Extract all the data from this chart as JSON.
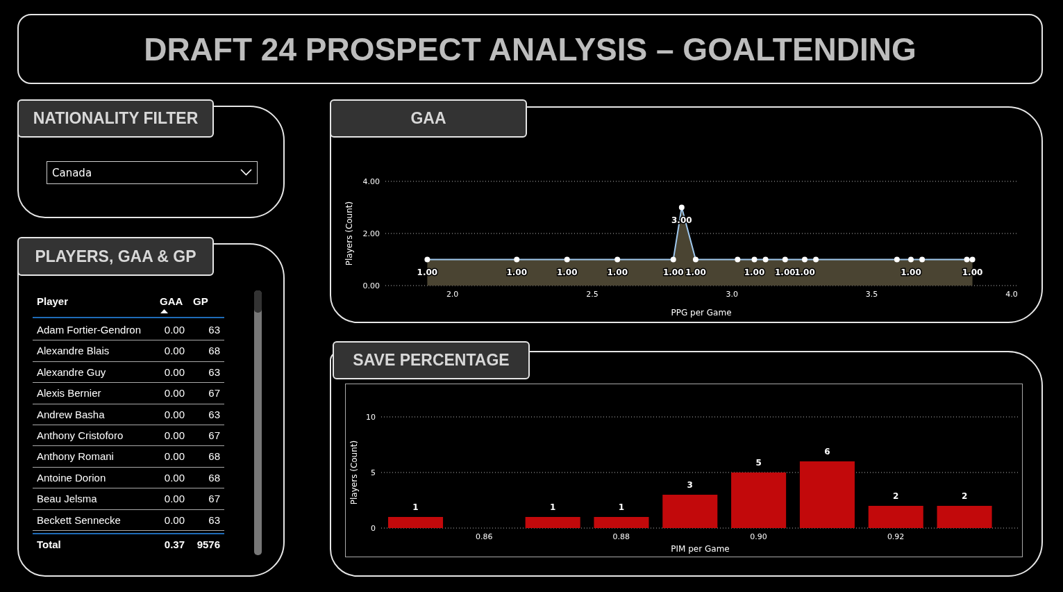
{
  "chart_data": [
    {
      "type": "other",
      "title": "DRAFT 24 PROSPECT ANALYSIS –  GOALTENDING"
    },
    {
      "type": "other",
      "title": "NATIONALITY FILTER",
      "annotations": [
        "Canada"
      ]
    },
    {
      "type": "other",
      "title": "PLAYERS, GAA & GP",
      "xlabel": "Player",
      "categories": [
        "Adam Fortier-Gendron",
        "Alexandre Blais",
        "Alexandre Guy",
        "Alexis Bernier",
        "Andrew Basha",
        "Anthony Cristoforo",
        "Anthony Romani",
        "Antoine Dorion",
        "Beau Jelsma",
        "Beckett Sennecke"
      ],
      "series": [
        {
          "name": "GAA",
          "values": [
            0,
            0,
            0,
            0,
            0,
            0,
            0,
            0,
            0,
            0
          ],
          "value_labels": [
            "0.00",
            "0.00",
            "0.00",
            "0.00",
            "0.00",
            "0.00",
            "0.00",
            "0.00",
            "0.00",
            "0.00"
          ]
        },
        {
          "name": "GP",
          "values": [
            63,
            68,
            63,
            67,
            63,
            67,
            68,
            68,
            67,
            63
          ]
        }
      ],
      "data_labels": true,
      "annotations": [
        "Total"
      ],
      "totals": [
        "0.37",
        "9576"
      ]
    },
    {
      "type": "area",
      "title": "GAA",
      "xlabel": "PPG per Game",
      "ylabel": "Players (Count)",
      "x": [
        1.91,
        2.23,
        2.41,
        2.59,
        2.79,
        2.82,
        2.87,
        3.02,
        3.08,
        3.12,
        3.19,
        3.26,
        3.3,
        3.59,
        3.64,
        3.68,
        3.84,
        3.86
      ],
      "values": [
        1,
        1,
        1,
        1,
        1,
        3,
        1,
        1,
        1,
        1,
        1,
        1,
        1,
        1,
        1,
        1,
        1,
        1
      ],
      "value_labels": [
        "1.00",
        "1.00",
        "1.00",
        "1.00",
        "1.00",
        "3.00",
        "1.00",
        null,
        "1.00",
        null,
        "1.00",
        "1.00",
        null,
        null,
        "1.00",
        null,
        null,
        "1.00"
      ],
      "color": "#9fc8ee",
      "marker": "circle",
      "grid": "y",
      "xlim": [
        1.76,
        4.02
      ],
      "xticks": [
        {
          "value": 2,
          "label": "2.0"
        },
        {
          "value": 2.5,
          "label": "2.5"
        },
        {
          "value": 3,
          "label": "3.0"
        },
        {
          "value": 3.5,
          "label": "3.5"
        },
        {
          "value": 4,
          "label": "4.0"
        }
      ],
      "ylim": [
        0,
        4
      ],
      "yticks": [
        {
          "value": 0,
          "label": "0.00"
        },
        {
          "value": 2,
          "label": "2.00"
        },
        {
          "value": 4,
          "label": "4.00"
        }
      ]
    },
    {
      "type": "bar",
      "title": "SAVE PERCENTAGE",
      "xlabel": "PIM per Game",
      "ylabel": "Players (Count)",
      "x": [
        0.85,
        0.87,
        0.88,
        0.89,
        0.9,
        0.91,
        0.92,
        0.93
      ],
      "values": [
        1,
        1,
        1,
        3,
        5,
        6,
        2,
        2
      ],
      "color": "#c2090b",
      "data_labels": true,
      "grid": "y",
      "xlim": [
        0.845,
        0.938
      ],
      "xticks": [
        0.86,
        0.88,
        {
          "value": 0.9,
          "label": "0.90"
        },
        0.92
      ],
      "ylim": [
        0,
        10
      ],
      "yticks": [
        0,
        5,
        10
      ]
    }
  ]
}
